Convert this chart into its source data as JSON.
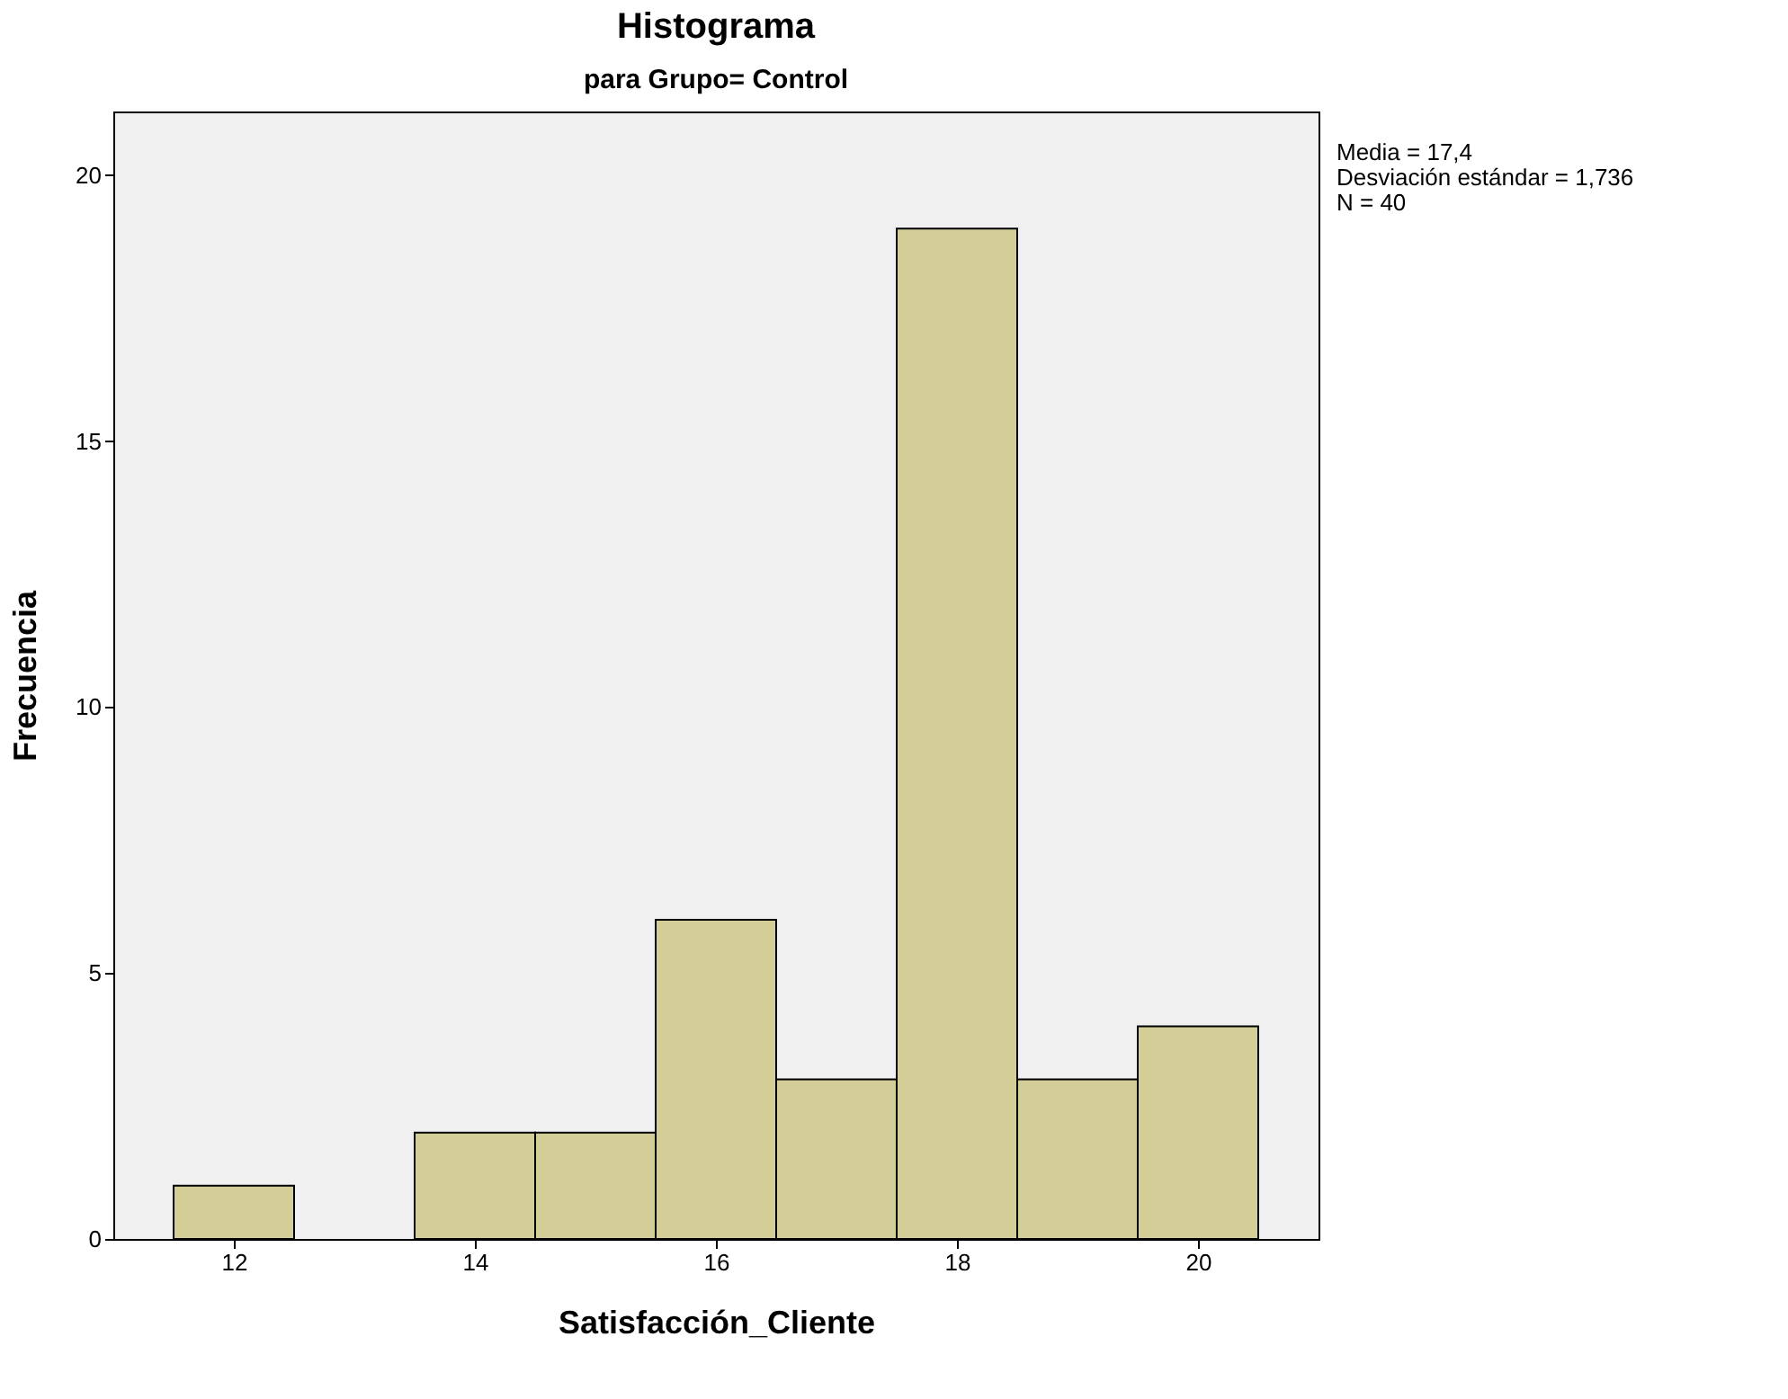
{
  "chart_data": {
    "type": "histogram",
    "title": "Histograma",
    "subtitle": "para Grupo= Control",
    "xlabel": "Satisfacción_Cliente",
    "ylabel": "Frecuencia",
    "bins": [
      11.5,
      12.5,
      13.5,
      14.5,
      15.5,
      16.5,
      17.5,
      18.5,
      19.5,
      20.5
    ],
    "values": [
      1,
      0,
      2,
      2,
      6,
      3,
      19,
      3,
      4
    ],
    "color": "#d3ce97",
    "xlim": [
      11,
      21
    ],
    "xticks": [
      12,
      14,
      16,
      18,
      20
    ],
    "ylim": [
      0,
      21.2
    ],
    "yticks": [
      0,
      5,
      10,
      15,
      20
    ],
    "grid": false,
    "legend": false,
    "annotations": [
      "Media = 17,4",
      "Desviación estándar = 1,736",
      "N = 40"
    ]
  }
}
